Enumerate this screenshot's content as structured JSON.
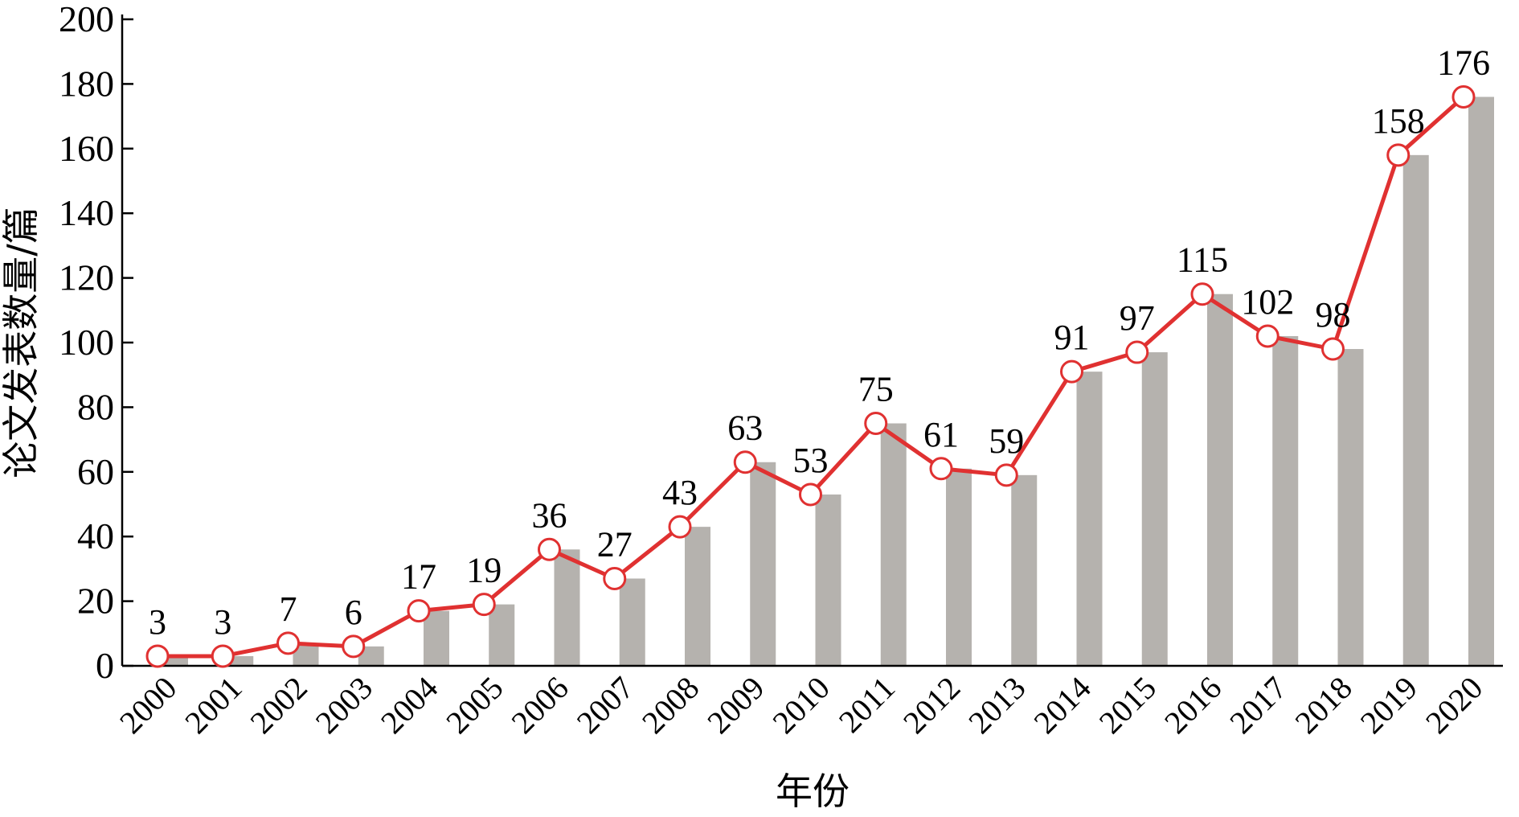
{
  "chart_data": {
    "type": "bar",
    "title": "",
    "xlabel": "年份",
    "ylabel": "论文发表数量/篇",
    "ylim": [
      0,
      200
    ],
    "yticks": [
      "0",
      "20",
      "40",
      "60",
      "80",
      "100",
      "120",
      "140",
      "160",
      "180",
      "200"
    ],
    "categories": [
      "2000",
      "2001",
      "2002",
      "2003",
      "2004",
      "2005",
      "2006",
      "2007",
      "2008",
      "2009",
      "2010",
      "2011",
      "2012",
      "2013",
      "2014",
      "2015",
      "2016",
      "2017",
      "2018",
      "2019",
      "2020"
    ],
    "values": [
      3,
      3,
      7,
      6,
      17,
      19,
      36,
      27,
      43,
      63,
      53,
      75,
      61,
      59,
      91,
      97,
      115,
      102,
      98,
      158,
      176
    ],
    "data_labels": [
      "3",
      "3",
      "7",
      "6",
      "17",
      "19",
      "36",
      "27",
      "43",
      "63",
      "53",
      "75",
      "61",
      "59",
      "91",
      "97",
      "115",
      "102",
      "98",
      "158",
      "176"
    ],
    "overlay": "line",
    "colors": {
      "bar": "#b5b2ae",
      "line": "#e03131",
      "marker_fill": "#ffffff",
      "axis": "#000000"
    },
    "grid": false,
    "legend": "none"
  }
}
